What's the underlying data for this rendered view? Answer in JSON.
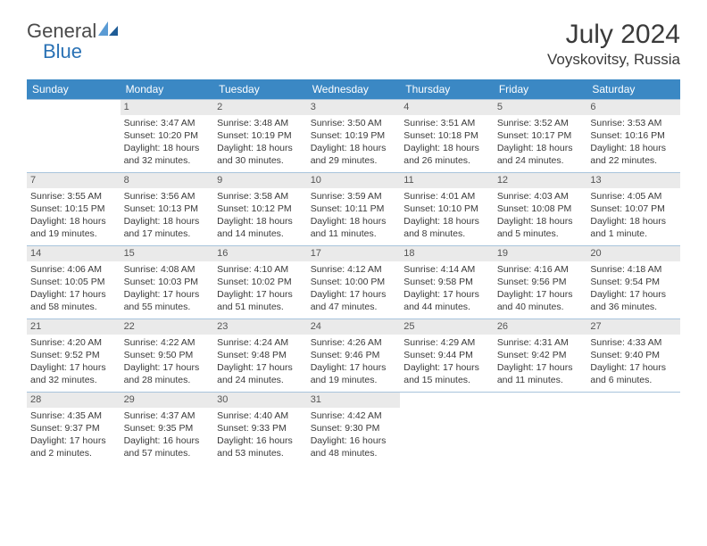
{
  "logo": {
    "text1": "General",
    "text2": "Blue"
  },
  "title": "July 2024",
  "location": "Voyskovitsy, Russia",
  "header_bg": "#3b88c4",
  "header_fg": "#ffffff",
  "border_color": "#a8c4dc",
  "daynum_bg": "#eaeaea",
  "text_color": "#3a3a3a",
  "columns": [
    "Sunday",
    "Monday",
    "Tuesday",
    "Wednesday",
    "Thursday",
    "Friday",
    "Saturday"
  ],
  "weeks": [
    [
      null,
      {
        "n": "1",
        "l1": "Sunrise: 3:47 AM",
        "l2": "Sunset: 10:20 PM",
        "l3": "Daylight: 18 hours",
        "l4": "and 32 minutes."
      },
      {
        "n": "2",
        "l1": "Sunrise: 3:48 AM",
        "l2": "Sunset: 10:19 PM",
        "l3": "Daylight: 18 hours",
        "l4": "and 30 minutes."
      },
      {
        "n": "3",
        "l1": "Sunrise: 3:50 AM",
        "l2": "Sunset: 10:19 PM",
        "l3": "Daylight: 18 hours",
        "l4": "and 29 minutes."
      },
      {
        "n": "4",
        "l1": "Sunrise: 3:51 AM",
        "l2": "Sunset: 10:18 PM",
        "l3": "Daylight: 18 hours",
        "l4": "and 26 minutes."
      },
      {
        "n": "5",
        "l1": "Sunrise: 3:52 AM",
        "l2": "Sunset: 10:17 PM",
        "l3": "Daylight: 18 hours",
        "l4": "and 24 minutes."
      },
      {
        "n": "6",
        "l1": "Sunrise: 3:53 AM",
        "l2": "Sunset: 10:16 PM",
        "l3": "Daylight: 18 hours",
        "l4": "and 22 minutes."
      }
    ],
    [
      {
        "n": "7",
        "l1": "Sunrise: 3:55 AM",
        "l2": "Sunset: 10:15 PM",
        "l3": "Daylight: 18 hours",
        "l4": "and 19 minutes."
      },
      {
        "n": "8",
        "l1": "Sunrise: 3:56 AM",
        "l2": "Sunset: 10:13 PM",
        "l3": "Daylight: 18 hours",
        "l4": "and 17 minutes."
      },
      {
        "n": "9",
        "l1": "Sunrise: 3:58 AM",
        "l2": "Sunset: 10:12 PM",
        "l3": "Daylight: 18 hours",
        "l4": "and 14 minutes."
      },
      {
        "n": "10",
        "l1": "Sunrise: 3:59 AM",
        "l2": "Sunset: 10:11 PM",
        "l3": "Daylight: 18 hours",
        "l4": "and 11 minutes."
      },
      {
        "n": "11",
        "l1": "Sunrise: 4:01 AM",
        "l2": "Sunset: 10:10 PM",
        "l3": "Daylight: 18 hours",
        "l4": "and 8 minutes."
      },
      {
        "n": "12",
        "l1": "Sunrise: 4:03 AM",
        "l2": "Sunset: 10:08 PM",
        "l3": "Daylight: 18 hours",
        "l4": "and 5 minutes."
      },
      {
        "n": "13",
        "l1": "Sunrise: 4:05 AM",
        "l2": "Sunset: 10:07 PM",
        "l3": "Daylight: 18 hours",
        "l4": "and 1 minute."
      }
    ],
    [
      {
        "n": "14",
        "l1": "Sunrise: 4:06 AM",
        "l2": "Sunset: 10:05 PM",
        "l3": "Daylight: 17 hours",
        "l4": "and 58 minutes."
      },
      {
        "n": "15",
        "l1": "Sunrise: 4:08 AM",
        "l2": "Sunset: 10:03 PM",
        "l3": "Daylight: 17 hours",
        "l4": "and 55 minutes."
      },
      {
        "n": "16",
        "l1": "Sunrise: 4:10 AM",
        "l2": "Sunset: 10:02 PM",
        "l3": "Daylight: 17 hours",
        "l4": "and 51 minutes."
      },
      {
        "n": "17",
        "l1": "Sunrise: 4:12 AM",
        "l2": "Sunset: 10:00 PM",
        "l3": "Daylight: 17 hours",
        "l4": "and 47 minutes."
      },
      {
        "n": "18",
        "l1": "Sunrise: 4:14 AM",
        "l2": "Sunset: 9:58 PM",
        "l3": "Daylight: 17 hours",
        "l4": "and 44 minutes."
      },
      {
        "n": "19",
        "l1": "Sunrise: 4:16 AM",
        "l2": "Sunset: 9:56 PM",
        "l3": "Daylight: 17 hours",
        "l4": "and 40 minutes."
      },
      {
        "n": "20",
        "l1": "Sunrise: 4:18 AM",
        "l2": "Sunset: 9:54 PM",
        "l3": "Daylight: 17 hours",
        "l4": "and 36 minutes."
      }
    ],
    [
      {
        "n": "21",
        "l1": "Sunrise: 4:20 AM",
        "l2": "Sunset: 9:52 PM",
        "l3": "Daylight: 17 hours",
        "l4": "and 32 minutes."
      },
      {
        "n": "22",
        "l1": "Sunrise: 4:22 AM",
        "l2": "Sunset: 9:50 PM",
        "l3": "Daylight: 17 hours",
        "l4": "and 28 minutes."
      },
      {
        "n": "23",
        "l1": "Sunrise: 4:24 AM",
        "l2": "Sunset: 9:48 PM",
        "l3": "Daylight: 17 hours",
        "l4": "and 24 minutes."
      },
      {
        "n": "24",
        "l1": "Sunrise: 4:26 AM",
        "l2": "Sunset: 9:46 PM",
        "l3": "Daylight: 17 hours",
        "l4": "and 19 minutes."
      },
      {
        "n": "25",
        "l1": "Sunrise: 4:29 AM",
        "l2": "Sunset: 9:44 PM",
        "l3": "Daylight: 17 hours",
        "l4": "and 15 minutes."
      },
      {
        "n": "26",
        "l1": "Sunrise: 4:31 AM",
        "l2": "Sunset: 9:42 PM",
        "l3": "Daylight: 17 hours",
        "l4": "and 11 minutes."
      },
      {
        "n": "27",
        "l1": "Sunrise: 4:33 AM",
        "l2": "Sunset: 9:40 PM",
        "l3": "Daylight: 17 hours",
        "l4": "and 6 minutes."
      }
    ],
    [
      {
        "n": "28",
        "l1": "Sunrise: 4:35 AM",
        "l2": "Sunset: 9:37 PM",
        "l3": "Daylight: 17 hours",
        "l4": "and 2 minutes."
      },
      {
        "n": "29",
        "l1": "Sunrise: 4:37 AM",
        "l2": "Sunset: 9:35 PM",
        "l3": "Daylight: 16 hours",
        "l4": "and 57 minutes."
      },
      {
        "n": "30",
        "l1": "Sunrise: 4:40 AM",
        "l2": "Sunset: 9:33 PM",
        "l3": "Daylight: 16 hours",
        "l4": "and 53 minutes."
      },
      {
        "n": "31",
        "l1": "Sunrise: 4:42 AM",
        "l2": "Sunset: 9:30 PM",
        "l3": "Daylight: 16 hours",
        "l4": "and 48 minutes."
      },
      null,
      null,
      null
    ]
  ]
}
